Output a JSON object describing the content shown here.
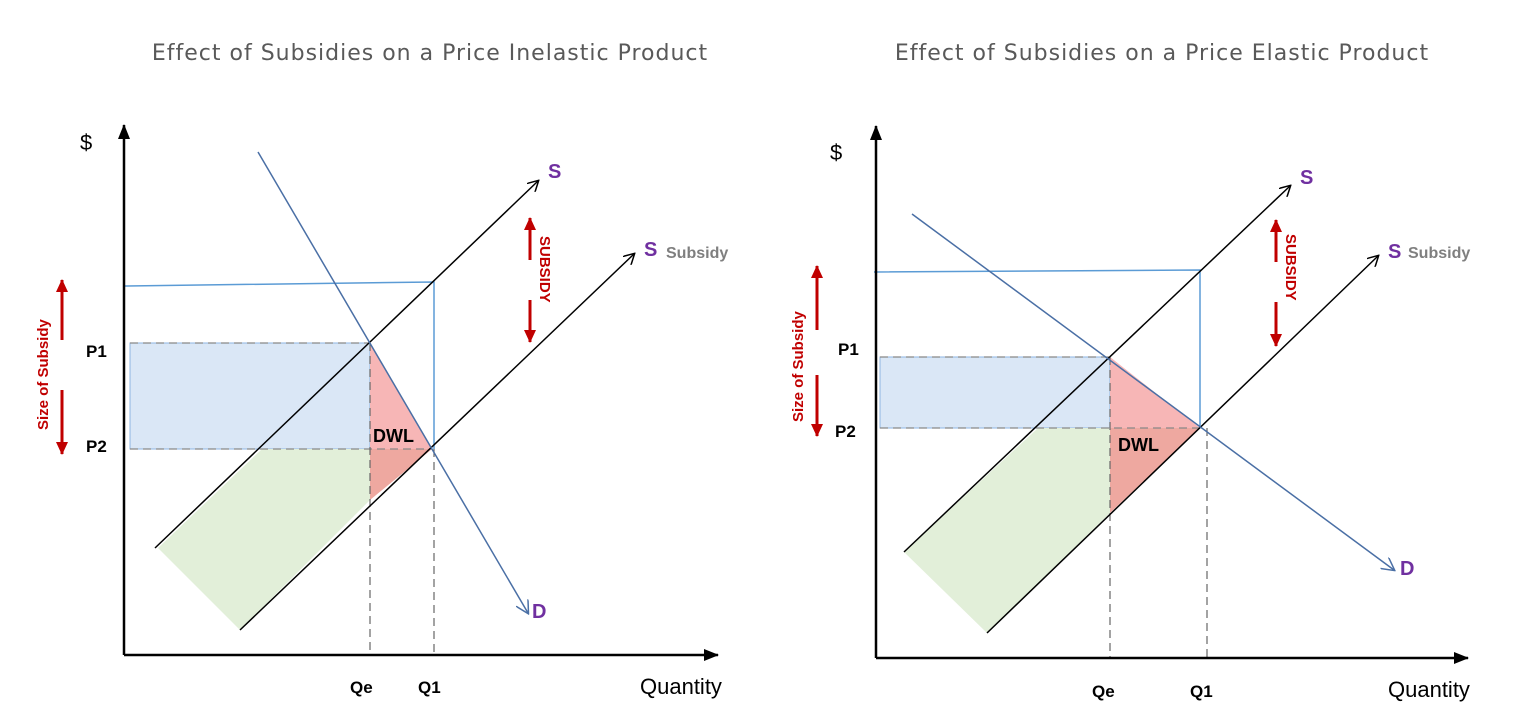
{
  "colors": {
    "axis": "#000000",
    "demand": "#4a6fa5",
    "supply": "#000000",
    "subsidy_box": "#5b9bd5",
    "consumer_area": "#dae7f6",
    "producer_area": "#e2efd9",
    "dwl_area": "#f4a6a6",
    "label_purple": "#7030a0",
    "label_red": "#c00000",
    "arrow_red": "#c00000"
  },
  "left": {
    "title": "Effect of Subsidies on a Price Inelastic Product",
    "y_axis_label": "$",
    "x_axis_label": "Quantity",
    "p1": "P1",
    "p2": "P2",
    "qe": "Qe",
    "q1": "Q1",
    "supply_label": "S",
    "supply_subsidy_label": "S",
    "subsidy_word": "Subsidy",
    "demand_label": "D",
    "subsidy_arrow_label": "SUBSIDY",
    "size_of_subsidy_label": "Size of Subsidy",
    "dwl_label": "DWL"
  },
  "right": {
    "title": "Effect of Subsidies on a Price Elastic Product",
    "y_axis_label": "$",
    "x_axis_label": "Quantity",
    "p1": "P1",
    "p2": "P2",
    "qe": "Qe",
    "q1": "Q1",
    "supply_label": "S",
    "supply_subsidy_label": "S",
    "subsidy_word": "Subsidy",
    "demand_label": "D",
    "subsidy_arrow_label": "SUBSIDY",
    "size_of_subsidy_label": "Size of Subsidy",
    "dwl_label": "DWL"
  }
}
